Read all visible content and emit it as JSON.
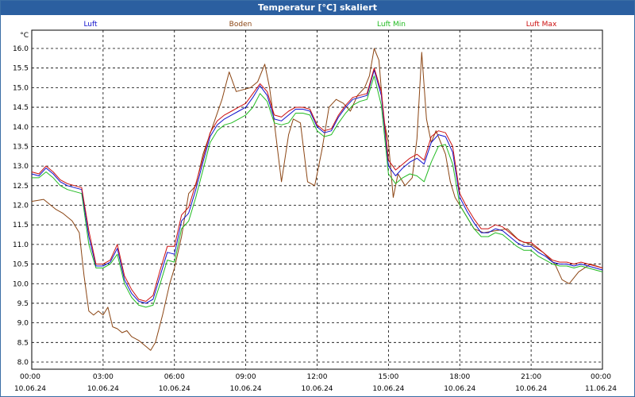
{
  "window": {
    "title": "Temperatur [°C] skaliert"
  },
  "chart_data": {
    "type": "line",
    "title": "Temperatur [°C] skaliert",
    "ylabel": "°C",
    "xlabel": "",
    "xlim": [
      0,
      24
    ],
    "ylim": [
      8.0,
      16.3
    ],
    "grid": true,
    "legend": "top",
    "yticks": [
      8.0,
      8.5,
      9.0,
      9.5,
      10.0,
      10.5,
      11.0,
      11.5,
      12.0,
      12.5,
      13.0,
      13.5,
      14.0,
      14.5,
      15.0,
      15.5,
      16.0
    ],
    "ytick_labels": [
      "8.0",
      "8.5",
      "9.0",
      "9.5",
      "10.0",
      "10.5",
      "11.0",
      "11.5",
      "12.0",
      "12.5",
      "13.0",
      "13.5",
      "14.0",
      "14.5",
      "15.0",
      "15.5",
      "16.0"
    ],
    "xticks": [
      {
        "x": 0,
        "time": "00:00",
        "date": "10.06.24"
      },
      {
        "x": 3,
        "time": "03:00",
        "date": "10.06.24"
      },
      {
        "x": 6,
        "time": "06:00",
        "date": "10.06.24"
      },
      {
        "x": 9,
        "time": "09:00",
        "date": "10.06.24"
      },
      {
        "x": 12,
        "time": "12:00",
        "date": "10.06.24"
      },
      {
        "x": 15,
        "time": "15:00",
        "date": "10.06.24"
      },
      {
        "x": 18,
        "time": "18:00",
        "date": "10.06.24"
      },
      {
        "x": 21,
        "time": "21:00",
        "date": "10.06.24"
      },
      {
        "x": 24,
        "time": "00:00",
        "date": "11.06.24"
      }
    ],
    "series": [
      {
        "name": "Boden",
        "color": "#8b4513",
        "x": [
          0,
          0.5,
          0.8,
          1.0,
          1.3,
          1.7,
          2.0,
          2.2,
          2.4,
          2.6,
          2.8,
          3.0,
          3.2,
          3.4,
          3.6,
          3.8,
          4.0,
          4.2,
          4.5,
          4.8,
          5.0,
          5.2,
          5.5,
          5.8,
          6.0,
          6.3,
          6.6,
          6.9,
          7.2,
          7.6,
          8.0,
          8.3,
          8.6,
          8.9,
          9.2,
          9.5,
          9.8,
          10.0,
          10.2,
          10.5,
          10.8,
          11.0,
          11.3,
          11.6,
          11.9,
          12.2,
          12.5,
          12.8,
          13.1,
          13.4,
          13.7,
          14.0,
          14.2,
          14.4,
          14.6,
          14.8,
          15.0,
          15.2,
          15.4,
          15.7,
          16.0,
          16.2,
          16.4,
          16.6,
          16.8,
          17.0,
          17.2,
          17.4,
          17.6,
          17.8,
          18.0,
          18.3,
          18.6,
          19.0,
          19.5,
          20.0,
          20.5,
          21.0,
          21.5,
          22.0,
          22.3,
          22.6,
          23.0,
          23.5,
          24.0
        ],
        "values": [
          12.1,
          12.15,
          12.0,
          11.9,
          11.8,
          11.6,
          11.3,
          10.2,
          9.3,
          9.2,
          9.3,
          9.2,
          9.4,
          8.9,
          8.85,
          8.75,
          8.8,
          8.65,
          8.55,
          8.4,
          8.3,
          8.5,
          9.2,
          10.0,
          10.4,
          11.2,
          12.3,
          12.5,
          13.3,
          14.0,
          14.7,
          15.4,
          14.9,
          14.95,
          15.0,
          15.15,
          15.6,
          15.0,
          14.1,
          12.6,
          13.8,
          14.2,
          14.1,
          12.6,
          12.5,
          13.4,
          14.5,
          14.7,
          14.6,
          14.4,
          14.8,
          15.0,
          15.3,
          16.0,
          15.7,
          14.2,
          13.6,
          12.2,
          12.8,
          12.5,
          12.7,
          13.7,
          15.9,
          14.2,
          13.6,
          13.9,
          13.6,
          13.3,
          12.6,
          12.2,
          12.0,
          11.7,
          11.4,
          11.3,
          11.35,
          11.4,
          11.1,
          11.0,
          10.8,
          10.5,
          10.1,
          10.0,
          10.3,
          10.5,
          10.4
        ]
      },
      {
        "name": "Luft Min",
        "color": "#22bb22",
        "x": [
          0,
          0.3,
          0.6,
          0.9,
          1.2,
          1.5,
          1.8,
          2.1,
          2.4,
          2.7,
          3.0,
          3.3,
          3.6,
          3.9,
          4.2,
          4.5,
          4.8,
          5.1,
          5.4,
          5.7,
          6.0,
          6.3,
          6.6,
          6.9,
          7.2,
          7.5,
          7.8,
          8.1,
          8.4,
          8.7,
          9.0,
          9.3,
          9.6,
          9.9,
          10.2,
          10.5,
          10.8,
          11.1,
          11.4,
          11.7,
          12.0,
          12.3,
          12.6,
          12.9,
          13.2,
          13.5,
          13.8,
          14.1,
          14.4,
          14.7,
          15.0,
          15.3,
          15.6,
          15.9,
          16.2,
          16.5,
          16.8,
          17.1,
          17.4,
          17.7,
          18.0,
          18.3,
          18.6,
          18.9,
          19.2,
          19.5,
          19.8,
          20.1,
          20.4,
          20.7,
          21.0,
          21.3,
          21.6,
          21.9,
          22.2,
          22.5,
          22.8,
          23.1,
          23.4,
          23.7,
          24.0
        ],
        "values": [
          12.7,
          12.7,
          12.85,
          12.7,
          12.5,
          12.4,
          12.35,
          12.3,
          11.0,
          10.4,
          10.4,
          10.5,
          10.75,
          10.0,
          9.65,
          9.45,
          9.4,
          9.45,
          10.0,
          10.6,
          10.55,
          11.4,
          11.6,
          12.2,
          12.9,
          13.6,
          13.9,
          14.05,
          14.1,
          14.2,
          14.3,
          14.5,
          14.85,
          14.65,
          14.1,
          14.05,
          14.1,
          14.35,
          14.35,
          14.3,
          13.9,
          13.75,
          13.8,
          14.1,
          14.35,
          14.55,
          14.65,
          14.7,
          15.3,
          14.55,
          12.8,
          12.55,
          12.7,
          12.8,
          12.75,
          12.6,
          13.1,
          13.5,
          13.55,
          13.05,
          12.0,
          11.7,
          11.4,
          11.2,
          11.2,
          11.3,
          11.25,
          11.1,
          10.95,
          10.85,
          10.85,
          10.7,
          10.6,
          10.5,
          10.45,
          10.45,
          10.4,
          10.45,
          10.4,
          10.35,
          10.3
        ]
      },
      {
        "name": "Luft",
        "color": "#1010cc",
        "x": [
          0,
          0.3,
          0.6,
          0.9,
          1.2,
          1.5,
          1.8,
          2.1,
          2.4,
          2.7,
          3.0,
          3.3,
          3.6,
          3.9,
          4.2,
          4.5,
          4.8,
          5.1,
          5.4,
          5.7,
          6.0,
          6.3,
          6.6,
          6.9,
          7.2,
          7.5,
          7.8,
          8.1,
          8.4,
          8.7,
          9.0,
          9.3,
          9.6,
          9.9,
          10.2,
          10.5,
          10.8,
          11.1,
          11.4,
          11.7,
          12.0,
          12.3,
          12.6,
          12.9,
          13.2,
          13.5,
          13.8,
          14.1,
          14.4,
          14.7,
          15.0,
          15.3,
          15.6,
          15.9,
          16.2,
          16.5,
          16.8,
          17.1,
          17.4,
          17.7,
          18.0,
          18.3,
          18.6,
          18.9,
          19.2,
          19.5,
          19.8,
          20.1,
          20.4,
          20.7,
          21.0,
          21.3,
          21.6,
          21.9,
          22.2,
          22.5,
          22.8,
          23.1,
          23.4,
          23.7,
          24.0
        ],
        "values": [
          12.8,
          12.75,
          12.95,
          12.8,
          12.6,
          12.5,
          12.45,
          12.4,
          11.2,
          10.45,
          10.45,
          10.55,
          10.9,
          10.1,
          9.75,
          9.55,
          9.5,
          9.6,
          10.2,
          10.8,
          10.75,
          11.6,
          11.8,
          12.4,
          13.1,
          13.75,
          14.05,
          14.2,
          14.3,
          14.4,
          14.5,
          14.75,
          15.05,
          14.8,
          14.2,
          14.15,
          14.3,
          14.45,
          14.45,
          14.4,
          14.0,
          13.85,
          13.9,
          14.25,
          14.5,
          14.7,
          14.75,
          14.8,
          15.45,
          14.8,
          13.0,
          12.75,
          12.95,
          13.1,
          13.2,
          13.05,
          13.6,
          13.8,
          13.75,
          13.35,
          12.2,
          11.85,
          11.55,
          11.3,
          11.3,
          11.4,
          11.35,
          11.2,
          11.05,
          10.95,
          10.95,
          10.8,
          10.7,
          10.55,
          10.5,
          10.5,
          10.45,
          10.5,
          10.45,
          10.4,
          10.35
        ]
      },
      {
        "name": "Luft Max",
        "color": "#cc1010",
        "x": [
          0,
          0.3,
          0.6,
          0.9,
          1.2,
          1.5,
          1.8,
          2.1,
          2.4,
          2.7,
          3.0,
          3.3,
          3.6,
          3.9,
          4.2,
          4.5,
          4.8,
          5.1,
          5.4,
          5.7,
          6.0,
          6.3,
          6.6,
          6.9,
          7.2,
          7.5,
          7.8,
          8.1,
          8.4,
          8.7,
          9.0,
          9.3,
          9.6,
          9.9,
          10.2,
          10.5,
          10.8,
          11.1,
          11.4,
          11.7,
          12.0,
          12.3,
          12.6,
          12.9,
          13.2,
          13.5,
          13.8,
          14.1,
          14.4,
          14.7,
          15.0,
          15.3,
          15.6,
          15.9,
          16.2,
          16.5,
          16.8,
          17.1,
          17.4,
          17.7,
          18.0,
          18.3,
          18.6,
          18.9,
          19.2,
          19.5,
          19.8,
          20.1,
          20.4,
          20.7,
          21.0,
          21.3,
          21.6,
          21.9,
          22.2,
          22.5,
          22.8,
          23.1,
          23.4,
          23.7,
          24.0
        ],
        "values": [
          12.85,
          12.8,
          13.0,
          12.85,
          12.65,
          12.55,
          12.5,
          12.45,
          11.35,
          10.5,
          10.5,
          10.6,
          11.0,
          10.2,
          9.85,
          9.6,
          9.55,
          9.7,
          10.35,
          10.95,
          10.95,
          11.75,
          11.95,
          12.55,
          13.2,
          13.85,
          14.15,
          14.3,
          14.4,
          14.5,
          14.6,
          14.85,
          15.1,
          14.9,
          14.3,
          14.25,
          14.4,
          14.5,
          14.5,
          14.45,
          14.05,
          13.9,
          13.95,
          14.3,
          14.55,
          14.75,
          14.8,
          14.85,
          15.5,
          14.9,
          13.15,
          12.9,
          13.05,
          13.2,
          13.3,
          13.15,
          13.75,
          13.9,
          13.85,
          13.5,
          12.3,
          11.95,
          11.65,
          11.4,
          11.4,
          11.5,
          11.45,
          11.3,
          11.15,
          11.05,
          11.05,
          10.9,
          10.75,
          10.6,
          10.55,
          10.55,
          10.5,
          10.55,
          10.5,
          10.45,
          10.4
        ]
      }
    ]
  }
}
